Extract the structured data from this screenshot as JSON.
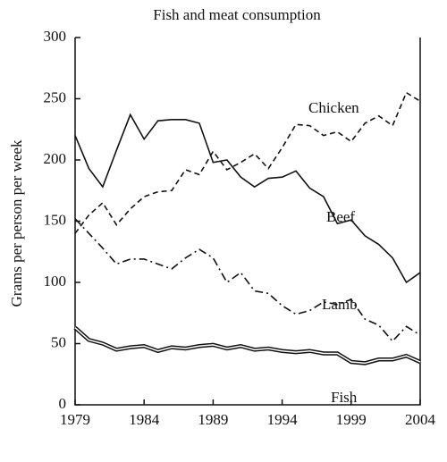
{
  "chart_data": {
    "type": "line",
    "title": "Fish and meat consumption",
    "y_label": "Grams per person per week",
    "x": [
      1979,
      1980,
      1981,
      1982,
      1983,
      1984,
      1985,
      1986,
      1987,
      1988,
      1989,
      1990,
      1991,
      1992,
      1993,
      1994,
      1995,
      1996,
      1997,
      1998,
      1999,
      2000,
      2001,
      2002,
      2003,
      2004
    ],
    "xlim": [
      1979,
      2004
    ],
    "xticks": [
      1979,
      1984,
      1989,
      1994,
      1999,
      2004
    ],
    "ylim": [
      0,
      300
    ],
    "yticks": [
      0,
      50,
      100,
      150,
      200,
      250,
      300
    ],
    "series": [
      {
        "name": "Chicken",
        "color": "#111111",
        "style": "dashed",
        "values": [
          140,
          155,
          165,
          147,
          160,
          170,
          174,
          175,
          192,
          188,
          207,
          192,
          198,
          205,
          193,
          210,
          229,
          228,
          220,
          223,
          215,
          230,
          236,
          228,
          255,
          248
        ]
      },
      {
        "name": "Beef",
        "color": "#111111",
        "style": "solid",
        "values": [
          220,
          193,
          178,
          208,
          237,
          217,
          232,
          233,
          233,
          230,
          198,
          200,
          186,
          178,
          185,
          186,
          191,
          177,
          170,
          148,
          151,
          138,
          131,
          120,
          100,
          108
        ]
      },
      {
        "name": "Lamb",
        "color": "#111111",
        "style": "dashdot",
        "values": [
          152,
          140,
          128,
          115,
          119,
          119,
          115,
          111,
          120,
          127,
          120,
          100,
          108,
          93,
          91,
          81,
          74,
          77,
          84,
          82,
          86,
          70,
          65,
          52,
          64,
          57
        ]
      },
      {
        "name": "Fish",
        "color": "#111111",
        "style": "double",
        "values": [
          63,
          53,
          50,
          45,
          47,
          48,
          44,
          47,
          46,
          48,
          49,
          46,
          48,
          45,
          46,
          44,
          43,
          44,
          42,
          42,
          35,
          34,
          37,
          37,
          40,
          35
        ]
      }
    ]
  }
}
